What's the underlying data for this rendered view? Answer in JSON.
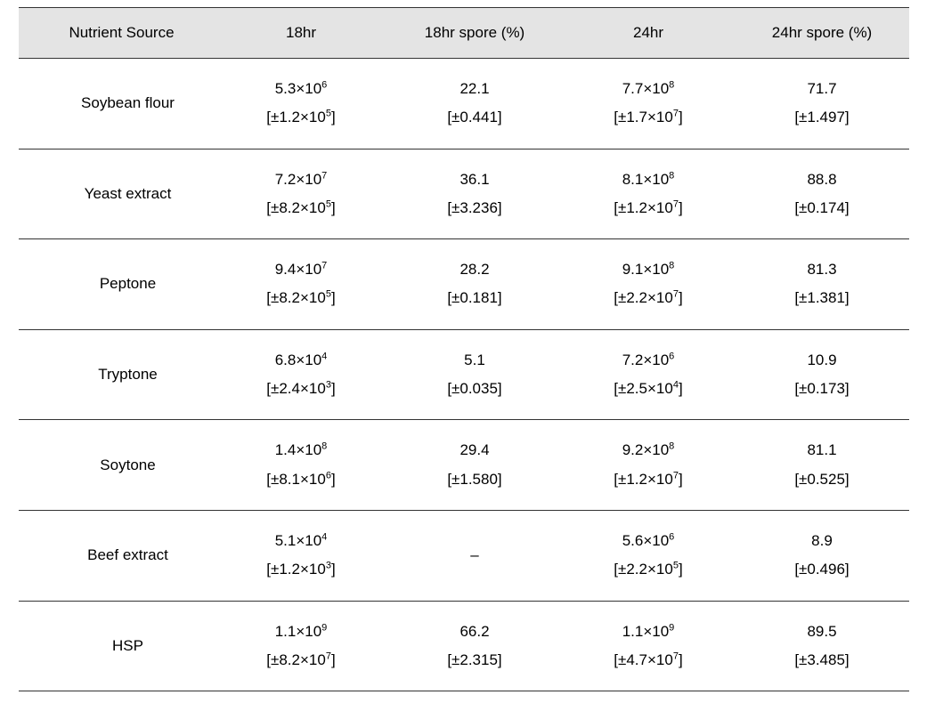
{
  "table": {
    "header_bg": "#e4e4e4",
    "border_color": "#333333",
    "font_size": 17,
    "columns": [
      "Nutrient Source",
      "18hr",
      "18hr spore (%)",
      "24hr",
      "24hr spore (%)"
    ],
    "rows": [
      {
        "nutrient": "Soybean flour",
        "cells": [
          {
            "val": "5.3×10",
            "exp": "6",
            "err": "[±1.2×10",
            "err_exp": "5",
            "err_close": "]"
          },
          {
            "val": "22.1",
            "err": "[±0.441]"
          },
          {
            "val": "7.7×10",
            "exp": "8",
            "err": "[±1.7×10",
            "err_exp": "7",
            "err_close": "]"
          },
          {
            "val": "71.7",
            "err": "[±1.497]"
          }
        ]
      },
      {
        "nutrient": "Yeast extract",
        "cells": [
          {
            "val": "7.2×10",
            "exp": "7",
            "err": "[±8.2×10",
            "err_exp": "5",
            "err_close": "]"
          },
          {
            "val": "36.1",
            "err": "[±3.236]"
          },
          {
            "val": "8.1×10",
            "exp": "8",
            "err": "[±1.2×10",
            "err_exp": "7",
            "err_close": "]"
          },
          {
            "val": "88.8",
            "err": "[±0.174]"
          }
        ]
      },
      {
        "nutrient": "Peptone",
        "cells": [
          {
            "val": "9.4×10",
            "exp": "7",
            "err": "[±8.2×10",
            "err_exp": "5",
            "err_close": "]"
          },
          {
            "val": "28.2",
            "err": "[±0.181]"
          },
          {
            "val": "9.1×10",
            "exp": "8",
            "err": "[±2.2×10",
            "err_exp": "7",
            "err_close": "]"
          },
          {
            "val": "81.3",
            "err": "[±1.381]"
          }
        ]
      },
      {
        "nutrient": "Tryptone",
        "cells": [
          {
            "val": "6.8×10",
            "exp": "4",
            "err": "[±2.4×10",
            "err_exp": "3",
            "err_close": "]"
          },
          {
            "val": "5.1",
            "err": "[±0.035]"
          },
          {
            "val": "7.2×10",
            "exp": "6",
            "err": "[±2.5×10",
            "err_exp": "4",
            "err_close": "]"
          },
          {
            "val": "10.9",
            "err": "[±0.173]"
          }
        ]
      },
      {
        "nutrient": "Soytone",
        "cells": [
          {
            "val": "1.4×10",
            "exp": "8",
            "err": "[±8.1×10",
            "err_exp": "6",
            "err_close": "]"
          },
          {
            "val": "29.4",
            "err": "[±1.580]"
          },
          {
            "val": "9.2×10",
            "exp": "8",
            "err": "[±1.2×10",
            "err_exp": "7",
            "err_close": "]"
          },
          {
            "val": "81.1",
            "err": "[±0.525]"
          }
        ]
      },
      {
        "nutrient": "Beef extract",
        "cells": [
          {
            "val": "5.1×10",
            "exp": "4",
            "err": "[±1.2×10",
            "err_exp": "3",
            "err_close": "]"
          },
          {
            "val": "–",
            "err": ""
          },
          {
            "val": "5.6×10",
            "exp": "6",
            "err": "[±2.2×10",
            "err_exp": "5",
            "err_close": "]"
          },
          {
            "val": "8.9",
            "err": "[±0.496]"
          }
        ]
      },
      {
        "nutrient": "HSP",
        "cells": [
          {
            "val": "1.1×10",
            "exp": "9",
            "err": "[±8.2×10",
            "err_exp": "7",
            "err_close": "]"
          },
          {
            "val": "66.2",
            "err": "[±2.315]"
          },
          {
            "val": "1.1×10",
            "exp": "9",
            "err": "[±4.7×10",
            "err_exp": "7",
            "err_close": "]"
          },
          {
            "val": "89.5",
            "err": "[±3.485]"
          }
        ]
      }
    ]
  }
}
